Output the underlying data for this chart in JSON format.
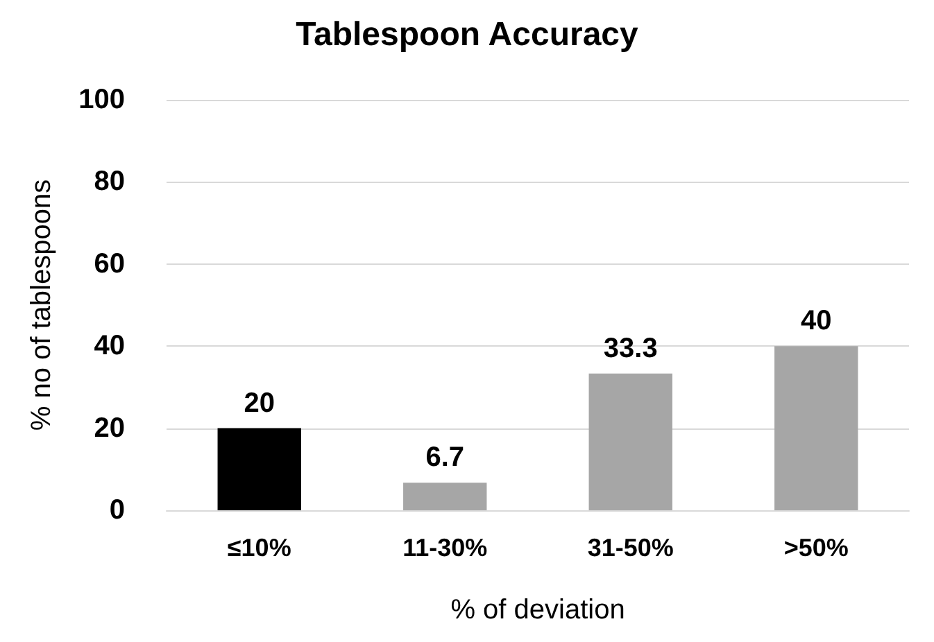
{
  "chart_data": {
    "type": "bar",
    "title": "Tablespoon Accuracy",
    "xlabel": "% of deviation",
    "ylabel": "% no of tablespoons",
    "categories": [
      "≤10%",
      "11-30%",
      "31-50%",
      ">50%"
    ],
    "values": [
      20,
      6.7,
      33.3,
      40
    ],
    "colors": [
      "#000000",
      "#a6a6a6",
      "#a6a6a6",
      "#a6a6a6"
    ],
    "ylim": [
      0,
      100
    ],
    "yticks": [
      0,
      20,
      40,
      60,
      80,
      100
    ],
    "grid": "y",
    "data_labels": true
  }
}
